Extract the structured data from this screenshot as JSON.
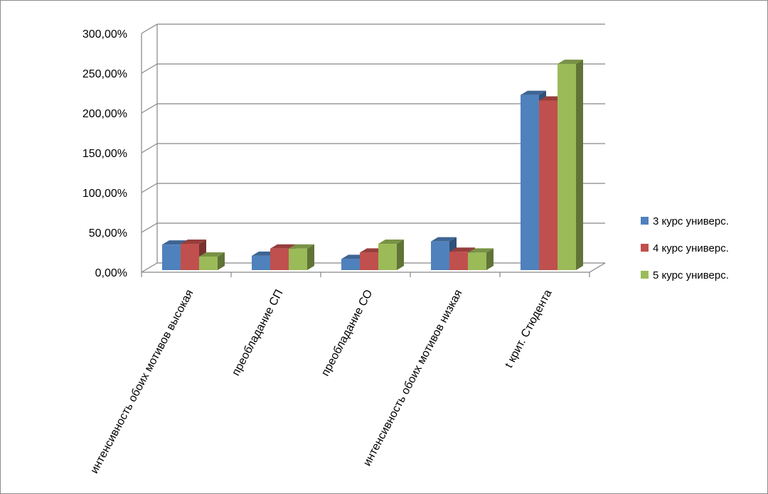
{
  "chart_data": {
    "type": "bar",
    "style": "3d-clustered-column",
    "categories": [
      "интенсивность обоих мотивов высокая",
      "преобладание СП",
      "преобладание СО",
      "интенсивность обоих мотивов низкая",
      "t крит. Стюдента"
    ],
    "series": [
      {
        "name": "3 курс универс.",
        "color": "#4f81bd",
        "values": [
          0.32,
          0.18,
          0.14,
          0.36,
          2.2
        ]
      },
      {
        "name": "4 курс  универс.",
        "color": "#c0504d",
        "values": [
          0.33,
          0.27,
          0.22,
          0.23,
          2.13
        ]
      },
      {
        "name": "5 курс  универс.",
        "color": "#9bbb59",
        "values": [
          0.17,
          0.27,
          0.33,
          0.22,
          2.59
        ]
      }
    ],
    "ylim": [
      0,
      3
    ],
    "yticks": [
      0,
      0.5,
      1,
      1.5,
      2,
      2.5,
      3
    ],
    "ytick_labels": [
      "0,00%",
      "50,00%",
      "100,00%",
      "150,00%",
      "200,00%",
      "250,00%",
      "300,00%"
    ],
    "grid": true,
    "legend_position": "right",
    "title": "",
    "xlabel": "",
    "ylabel": ""
  }
}
